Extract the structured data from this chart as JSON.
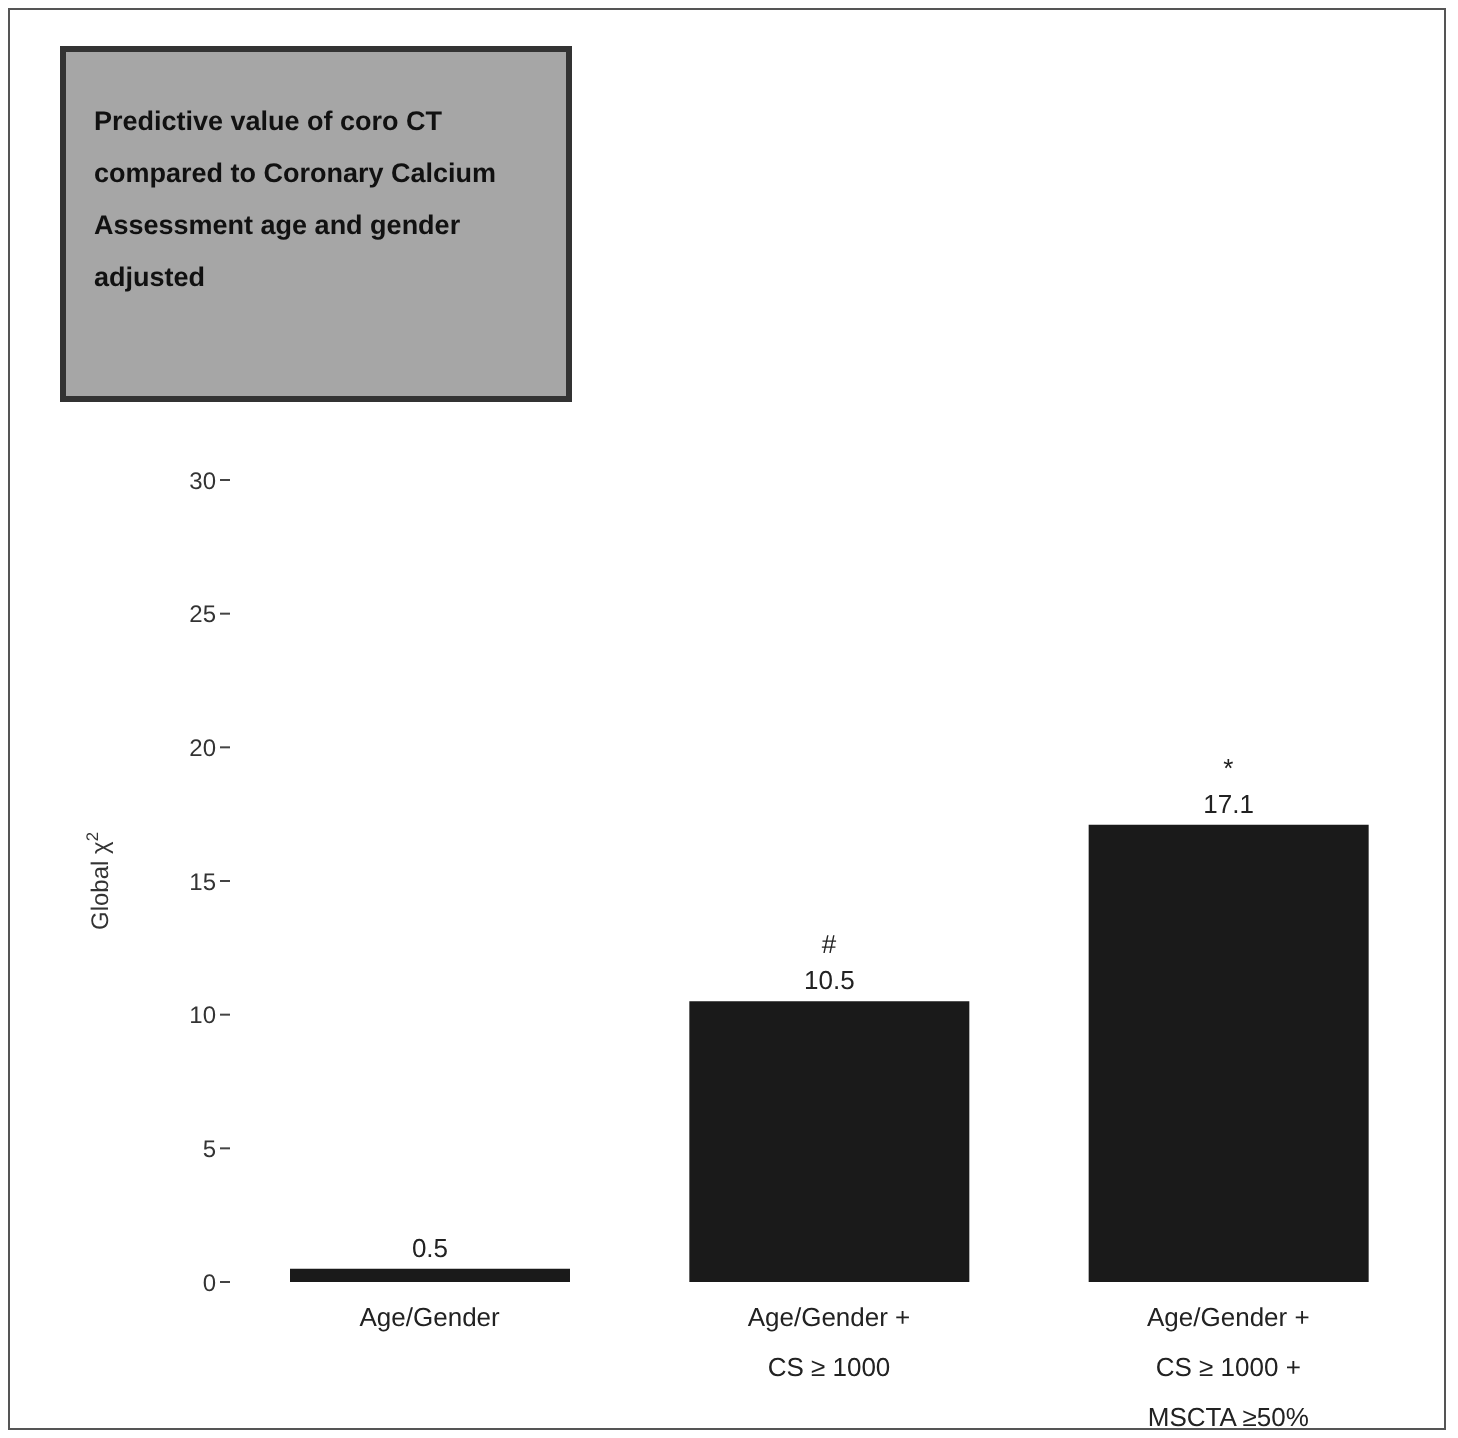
{
  "chart_data": {
    "type": "bar",
    "title": "Predictive value of coro CT compared to Coronary Calcium Assessment age and gender adjusted",
    "ylabel": "Global χ$^{2}$",
    "categories": [
      "Age/Gender",
      "Age/Gender +\nCS ≥ 1000",
      "Age/Gender +\nCS ≥ 1000 +\nMSCTA ≥50%"
    ],
    "values": [
      0.5,
      10.5,
      17.1
    ],
    "color": "#1a1a1a",
    "data_labels": true,
    "ylim": [
      0,
      30
    ],
    "yticks": [
      0,
      5,
      10,
      15,
      20,
      25,
      30
    ],
    "grid": false,
    "annotations": [
      {
        "text": "#",
        "x": "Age/Gender +\nCS ≥ 1000",
        "y": 10.5
      },
      {
        "text": "*",
        "x": "Age/Gender +\nCS ≥ 1000 +\nMSCTA ≥50%",
        "y": 17.1
      }
    ]
  }
}
